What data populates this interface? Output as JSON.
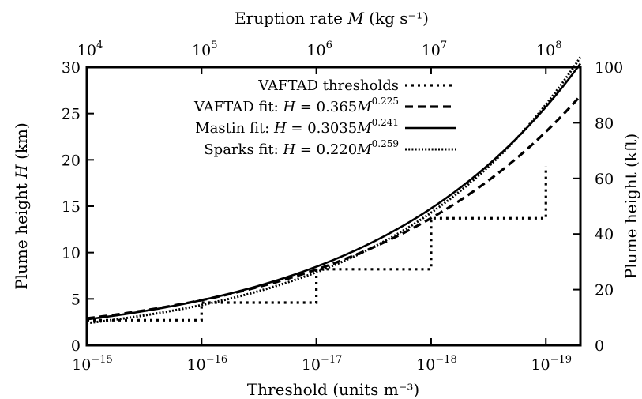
{
  "chart_data": {
    "type": "line",
    "xlabel": "Threshold (units m⁻³)",
    "x2label": "Eruption rate M (kg s⁻¹)",
    "ylabel": "Plume height H (km)",
    "y2label": "Plume height (kft)",
    "x_ticks": [
      {
        "value": 1e-15,
        "base": "10",
        "exp": "−15"
      },
      {
        "value": 1e-16,
        "base": "10",
        "exp": "−16"
      },
      {
        "value": 1e-17,
        "base": "10",
        "exp": "−17"
      },
      {
        "value": 1e-18,
        "base": "10",
        "exp": "−18"
      },
      {
        "value": 1e-19,
        "base": "10",
        "exp": "−19"
      }
    ],
    "x2_ticks": [
      {
        "value": 10000.0,
        "base": "10",
        "exp": "4"
      },
      {
        "value": 100000.0,
        "base": "10",
        "exp": "5"
      },
      {
        "value": 1000000.0,
        "base": "10",
        "exp": "6"
      },
      {
        "value": 10000000.0,
        "base": "10",
        "exp": "7"
      },
      {
        "value": 100000000.0,
        "base": "10",
        "exp": "8"
      }
    ],
    "xlim": [
      1e-15,
      2e-19
    ],
    "x2lim": [
      10000.0,
      200000000.0
    ],
    "x_scale": "log-reversed",
    "x2_scale": "log",
    "ylim": [
      0,
      30
    ],
    "yticks": [
      0,
      5,
      10,
      15,
      20,
      25,
      30
    ],
    "y2lim": [
      0,
      100
    ],
    "y2ticks": [
      0,
      20,
      40,
      60,
      80,
      100
    ],
    "legend_position": "top-center",
    "series": [
      {
        "name": "VAFTAD thresholds",
        "style": "dotted-thick",
        "x_eruption_rate": [
          10000.0,
          100000.0,
          100000.0,
          1000000.0,
          1000000.0,
          10000000.0,
          10000000.0,
          100000000.0,
          100000000.0
        ],
        "H_km": [
          2.7,
          2.7,
          4.6,
          4.6,
          8.2,
          8.2,
          13.7,
          13.7,
          19.3
        ]
      },
      {
        "name": "VAFTAD fit: ",
        "formula": {
          "lhs": "H",
          "coef": "0.365",
          "var": "M",
          "exp": "0.225"
        },
        "style": "dashed",
        "a": 0.365,
        "b": 0.225
      },
      {
        "name": "Mastin fit: ",
        "formula": {
          "lhs": "H",
          "coef": "0.3035",
          "var": "M",
          "exp": "0.241"
        },
        "style": "solid",
        "a": 0.3035,
        "b": 0.241
      },
      {
        "name": "Sparks fit: ",
        "formula": {
          "lhs": "H",
          "coef": "0.220",
          "var": "M",
          "exp": "0.259"
        },
        "style": "dotted-fine",
        "a": 0.22,
        "b": 0.259
      }
    ]
  }
}
